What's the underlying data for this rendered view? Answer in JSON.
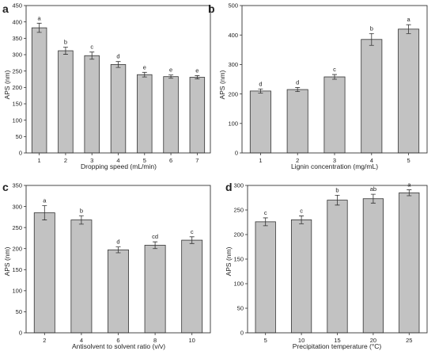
{
  "colors": {
    "bar_fill": "#c2c2c2",
    "bar_stroke": "#333333",
    "axis": "#333333"
  },
  "chart_data": [
    {
      "panel": "a",
      "type": "bar",
      "xlabel": "Dropping speed (mL/min)",
      "ylabel": "APS (nm)",
      "categories": [
        "1",
        "2",
        "3",
        "4",
        "5",
        "6",
        "7"
      ],
      "values": [
        382,
        312,
        297,
        270,
        239,
        233,
        231
      ],
      "errors": [
        14,
        11,
        11,
        9,
        7,
        5,
        5
      ],
      "significance": [
        "a",
        "b",
        "c",
        "d",
        "e",
        "e",
        "e"
      ],
      "ylim": [
        0,
        450
      ],
      "yticks": [
        0,
        50,
        100,
        150,
        200,
        250,
        300,
        350,
        400,
        450
      ]
    },
    {
      "panel": "b",
      "type": "bar",
      "xlabel": "Lignin concentration (mg/mL)",
      "ylabel": "APS (nm)",
      "categories": [
        "1",
        "2",
        "3",
        "4",
        "5"
      ],
      "values": [
        210,
        215,
        258,
        385,
        420
      ],
      "errors": [
        7,
        7,
        8,
        20,
        15
      ],
      "significance": [
        "d",
        "d",
        "c",
        "b",
        "a"
      ],
      "ylim": [
        0,
        500
      ],
      "yticks": [
        0,
        100,
        200,
        300,
        400,
        500
      ]
    },
    {
      "panel": "c",
      "type": "bar",
      "xlabel": "Antisolvent to solvent ratio (v/v)",
      "ylabel": "APS (nm)",
      "categories": [
        "2",
        "4",
        "6",
        "8",
        "10"
      ],
      "values": [
        285,
        268,
        197,
        208,
        220
      ],
      "errors": [
        17,
        10,
        7,
        8,
        8
      ],
      "significance": [
        "a",
        "b",
        "d",
        "cd",
        "c"
      ],
      "ylim": [
        0,
        350
      ],
      "yticks": [
        0,
        50,
        100,
        150,
        200,
        250,
        300,
        350
      ]
    },
    {
      "panel": "d",
      "type": "bar",
      "xlabel": "Precipitation temperature (°C)",
      "ylabel": "APS (nm)",
      "categories": [
        "5",
        "10",
        "15",
        "20",
        "25"
      ],
      "values": [
        226,
        230,
        270,
        273,
        285
      ],
      "errors": [
        8,
        8,
        10,
        9,
        6
      ],
      "significance": [
        "c",
        "c",
        "b",
        "ab",
        "a"
      ],
      "ylim": [
        0,
        300
      ],
      "yticks": [
        0,
        50,
        100,
        150,
        200,
        250,
        300
      ]
    }
  ]
}
